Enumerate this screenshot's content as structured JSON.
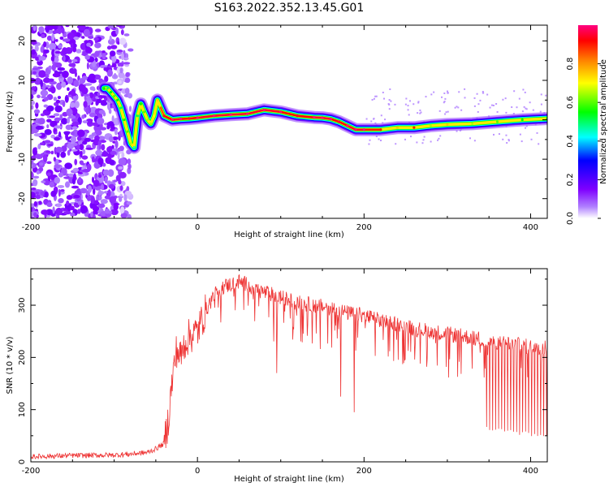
{
  "figure": {
    "title": "S163.2022.352.13.45.G01"
  },
  "chart_data": [
    {
      "type": "heatmap",
      "xlabel": "Height of straight line (km)",
      "ylabel": "Frequency (Hz)",
      "xlim": [
        -200,
        420
      ],
      "ylim": [
        -25,
        24
      ],
      "x_ticks": [
        "-200",
        "0",
        "200",
        "400"
      ],
      "y_ticks": [
        "20",
        "10",
        "0",
        "-10",
        "-20"
      ],
      "colorbar": {
        "label": "Normalized spectral amplitude",
        "range": [
          0,
          1
        ],
        "ticks": [
          "0.0",
          "0.2",
          "0.4",
          "0.6",
          "0.8"
        ],
        "colormap": [
          "#ffffff",
          "#7f00ff",
          "#0000ff",
          "#00ffff",
          "#00ff00",
          "#ffff00",
          "#ff7f00",
          "#ff0000",
          "#ff0080"
        ]
      },
      "noise_region_x": [
        -200,
        -80
      ],
      "ridge": {
        "x": [
          -112,
          -108,
          -104,
          -100,
          -96,
          -92,
          -88,
          -84,
          -80,
          -76,
          -72,
          -68,
          -64,
          -60,
          -56,
          -52,
          -48,
          -44,
          -40,
          -30,
          -20,
          -10,
          0,
          20,
          40,
          60,
          80,
          100,
          120,
          140,
          150,
          160,
          170,
          180,
          190,
          200,
          220,
          240,
          260,
          280,
          300,
          330,
          360,
          390,
          420
        ],
        "y": [
          8,
          8,
          7,
          6,
          5,
          3,
          0,
          -3,
          -6,
          -7,
          1,
          4,
          2,
          0,
          -1,
          1,
          5,
          3,
          1,
          0,
          0.2,
          0.3,
          0.5,
          1,
          1.3,
          1.5,
          2.5,
          2,
          1,
          0.6,
          0.5,
          0.2,
          -0.5,
          -1.5,
          -2.5,
          -2.5,
          -2.5,
          -2.0,
          -2.0,
          -1.5,
          -1.2,
          -1.0,
          -0.5,
          0,
          0.3
        ],
        "amplitude": [
          0.5,
          0.45,
          0.5,
          0.55,
          0.5,
          0.45,
          0.5,
          0.55,
          0.6,
          0.4,
          0.45,
          0.5,
          0.55,
          0.6,
          0.6,
          0.65,
          0.7,
          0.8,
          0.9,
          0.95,
          0.95,
          0.9,
          0.95,
          0.95,
          0.95,
          0.95,
          0.95,
          0.95,
          0.9,
          0.95,
          0.95,
          0.95,
          0.9,
          0.95,
          0.95,
          0.95,
          0.85,
          0.7,
          0.85,
          0.6,
          0.7,
          0.6,
          0.55,
          0.5,
          0.5
        ]
      }
    },
    {
      "type": "line",
      "xlabel": "Height of straight line (km)",
      "ylabel": "SNR (10 * v/v)",
      "xlim": [
        -200,
        420
      ],
      "ylim": [
        0,
        370
      ],
      "x_ticks": [
        "-200",
        "0",
        "200",
        "400"
      ],
      "y_ticks": [
        "300",
        "200",
        "100",
        "0"
      ],
      "color": "#ee3333",
      "series": [
        {
          "x": [
            -200,
            -150,
            -100,
            -80,
            -60,
            -50,
            -40,
            -35,
            -30,
            -25,
            -20,
            -15,
            -10,
            -5,
            0,
            5,
            10,
            20,
            30,
            40,
            50,
            60,
            70,
            80,
            90,
            100,
            120,
            140,
            160,
            180,
            200,
            220,
            240,
            260,
            280,
            300,
            320,
            340,
            345,
            350,
            360,
            380,
            400,
            420
          ],
          "y": [
            10,
            12,
            13,
            15,
            18,
            25,
            35,
            80,
            160,
            215,
            200,
            230,
            240,
            245,
            250,
            270,
            290,
            320,
            335,
            340,
            345,
            340,
            330,
            325,
            320,
            315,
            305,
            300,
            295,
            285,
            280,
            270,
            265,
            255,
            250,
            245,
            240,
            235,
            230,
            225,
            230,
            225,
            220,
            220
          ]
        }
      ],
      "envelope_low_x": [
        345,
        420
      ],
      "envelope_low_y": [
        60,
        45
      ],
      "dips": [
        {
          "x": 95,
          "y": 170
        },
        {
          "x": 172,
          "y": 125
        },
        {
          "x": 188,
          "y": 95
        }
      ]
    }
  ]
}
